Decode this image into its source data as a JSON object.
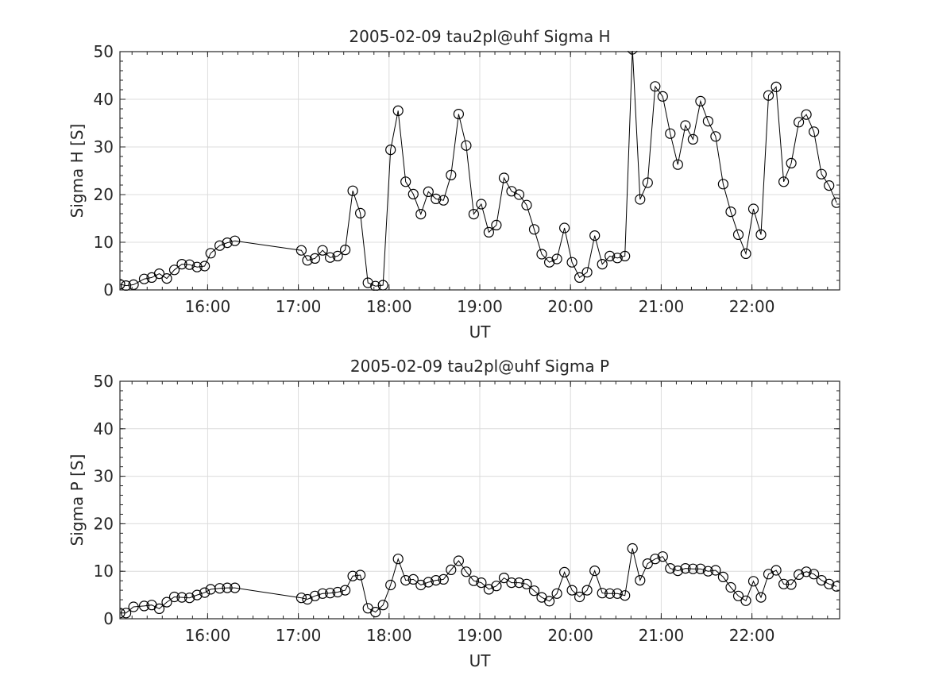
{
  "chart_data": [
    {
      "type": "line",
      "title": "2005-02-09  tau2pl@uhf Sigma H",
      "xlabel": "UT",
      "ylabel": "Sigma H [S]",
      "ylim": [
        0,
        50
      ],
      "yticks": [
        "0",
        "10",
        "20",
        "30",
        "40",
        "50"
      ],
      "xticks": [
        "16:00",
        "17:00",
        "18:00",
        "19:00",
        "20:00",
        "21:00",
        "22:00"
      ],
      "xrange": [
        "15:02",
        "22:58"
      ],
      "grid": true,
      "marker": "open-circle",
      "series": [
        {
          "x": [
            "15:02",
            "15:06",
            "15:11",
            "15:18",
            "15:23",
            "15:28",
            "15:33",
            "15:38",
            "15:43",
            "15:48",
            "15:53",
            "15:58",
            "16:02",
            "16:08",
            "16:13",
            "16:18",
            "17:02",
            "17:06",
            "17:11",
            "17:16",
            "17:21",
            "17:26",
            "17:31",
            "17:36",
            "17:41",
            "17:46",
            "17:51",
            "17:56",
            "18:01",
            "18:06",
            "18:11",
            "18:16",
            "18:21",
            "18:26",
            "18:31",
            "18:36",
            "18:41",
            "18:46",
            "18:51",
            "18:56",
            "19:01",
            "19:06",
            "19:11",
            "19:16",
            "19:21",
            "19:26",
            "19:31",
            "19:36",
            "19:41",
            "19:46",
            "19:51",
            "19:56",
            "20:01",
            "20:06",
            "20:11",
            "20:16",
            "20:21",
            "20:26",
            "20:31",
            "20:36",
            "20:41",
            "20:46",
            "20:51",
            "20:56",
            "21:01",
            "21:06",
            "21:11",
            "21:16",
            "21:21",
            "21:26",
            "21:31",
            "21:36",
            "21:41",
            "21:46",
            "21:51",
            "21:56",
            "22:01",
            "22:06",
            "22:11",
            "22:16",
            "22:21",
            "22:26",
            "22:31",
            "22:36",
            "22:41",
            "22:46",
            "22:51",
            "22:56"
          ],
          "y": [
            1.2,
            0.9,
            1.1,
            2.3,
            2.6,
            3.4,
            2.4,
            4.2,
            5.4,
            5.3,
            4.8,
            5.0,
            7.7,
            9.3,
            9.9,
            10.3,
            8.3,
            6.2,
            6.6,
            8.3,
            6.8,
            7.1,
            8.4,
            20.8,
            16.1,
            1.5,
            0.8,
            1.0,
            29.4,
            37.6,
            22.7,
            20.1,
            15.9,
            20.6,
            19.1,
            18.8,
            24.1,
            36.9,
            30.3,
            15.9,
            18.0,
            12.1,
            13.6,
            23.5,
            20.7,
            20.0,
            17.8,
            12.7,
            7.5,
            5.8,
            6.5,
            13.0,
            5.8,
            2.6,
            3.7,
            11.4,
            5.4,
            7.1,
            6.7,
            7.1,
            50.5,
            19.0,
            22.5,
            42.7,
            40.6,
            32.8,
            26.3,
            34.5,
            31.6,
            39.6,
            35.4,
            32.2,
            22.2,
            16.4,
            11.6,
            7.6,
            17.0,
            11.6,
            40.8,
            42.6,
            22.7,
            26.6,
            35.2,
            36.8,
            33.2,
            24.3,
            21.9,
            18.3
          ]
        }
      ]
    },
    {
      "type": "line",
      "title": "2005-02-09  tau2pl@uhf Sigma P",
      "xlabel": "UT",
      "ylabel": "Sigma P [S]",
      "ylim": [
        0,
        50
      ],
      "yticks": [
        "0",
        "10",
        "20",
        "30",
        "40",
        "50"
      ],
      "xticks": [
        "16:00",
        "17:00",
        "18:00",
        "19:00",
        "20:00",
        "21:00",
        "22:00"
      ],
      "xrange": [
        "15:02",
        "22:58"
      ],
      "grid": true,
      "marker": "open-circle",
      "series": [
        {
          "x": [
            "15:02",
            "15:06",
            "15:11",
            "15:18",
            "15:23",
            "15:28",
            "15:33",
            "15:38",
            "15:43",
            "15:48",
            "15:53",
            "15:58",
            "16:02",
            "16:08",
            "16:13",
            "16:18",
            "17:02",
            "17:06",
            "17:11",
            "17:16",
            "17:21",
            "17:26",
            "17:31",
            "17:36",
            "17:41",
            "17:46",
            "17:51",
            "17:56",
            "18:01",
            "18:06",
            "18:11",
            "18:16",
            "18:21",
            "18:26",
            "18:31",
            "18:36",
            "18:41",
            "18:46",
            "18:51",
            "18:56",
            "19:01",
            "19:06",
            "19:11",
            "19:16",
            "19:21",
            "19:26",
            "19:31",
            "19:36",
            "19:41",
            "19:46",
            "19:51",
            "19:56",
            "20:01",
            "20:06",
            "20:11",
            "20:16",
            "20:21",
            "20:26",
            "20:31",
            "20:36",
            "20:41",
            "20:46",
            "20:51",
            "20:56",
            "21:01",
            "21:06",
            "21:11",
            "21:16",
            "21:21",
            "21:26",
            "21:31",
            "21:36",
            "21:41",
            "21:46",
            "21:51",
            "21:56",
            "22:01",
            "22:06",
            "22:11",
            "22:16",
            "22:21",
            "22:26",
            "22:31",
            "22:36",
            "22:41",
            "22:46",
            "22:51",
            "22:56"
          ],
          "y": [
            1.2,
            1.2,
            2.5,
            2.7,
            2.9,
            2.1,
            3.5,
            4.6,
            4.5,
            4.4,
            5.0,
            5.5,
            6.2,
            6.4,
            6.5,
            6.5,
            4.4,
            4.1,
            4.8,
            5.3,
            5.4,
            5.6,
            6.0,
            9.0,
            9.2,
            2.2,
            1.4,
            2.9,
            7.1,
            12.6,
            8.1,
            8.3,
            7.1,
            7.7,
            8.1,
            8.3,
            10.3,
            12.2,
            9.9,
            8.0,
            7.6,
            6.2,
            6.9,
            8.6,
            7.6,
            7.6,
            7.3,
            5.9,
            4.5,
            3.7,
            5.3,
            9.8,
            6.0,
            4.6,
            6.0,
            10.1,
            5.4,
            5.3,
            5.3,
            4.9,
            14.8,
            8.1,
            11.6,
            12.6,
            13.1,
            10.6,
            10.1,
            10.6,
            10.5,
            10.5,
            10.0,
            10.2,
            8.8,
            6.6,
            4.8,
            3.8,
            7.9,
            4.5,
            9.4,
            10.2,
            7.3,
            7.2,
            9.3,
            9.9,
            9.4,
            8.1,
            7.3,
            6.8
          ]
        }
      ]
    }
  ]
}
